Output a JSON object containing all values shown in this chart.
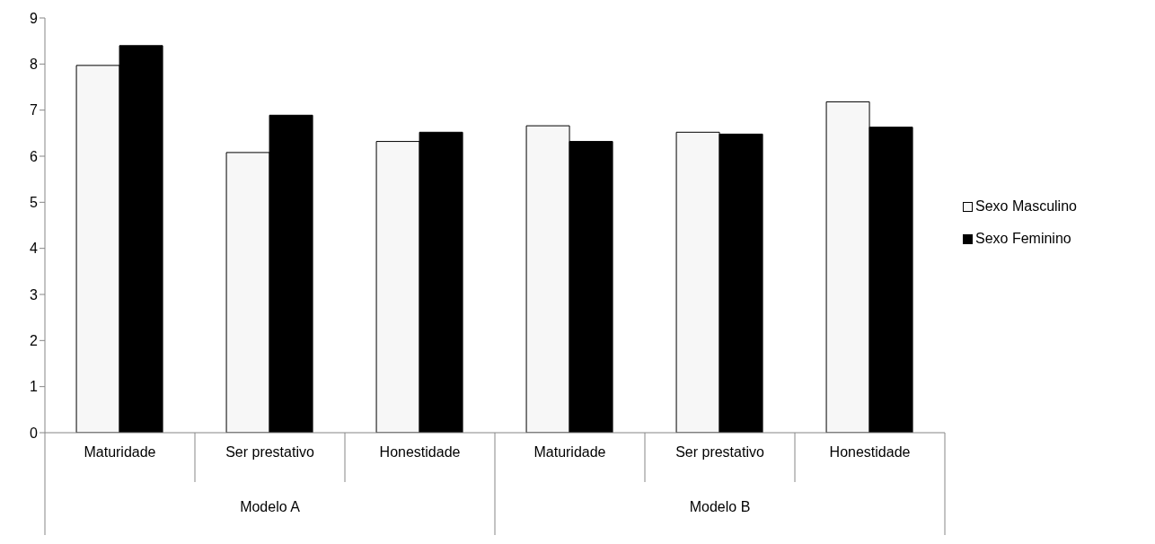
{
  "chart_data": {
    "type": "bar",
    "categories": [
      "Maturidade",
      "Ser prestativo",
      "Honestidade",
      "Maturidade",
      "Ser prestativo",
      "Honestidade"
    ],
    "series": [
      {
        "name": "Sexo Masculino",
        "color": "#f7f7f7",
        "values": [
          7.97,
          6.08,
          6.32,
          6.66,
          6.52,
          7.18
        ]
      },
      {
        "name": "Sexo Feminino",
        "color": "#000000",
        "values": [
          8.4,
          6.89,
          6.52,
          6.32,
          6.48,
          6.63
        ]
      }
    ],
    "ylim": [
      0,
      9
    ],
    "yticks": [
      0,
      1,
      2,
      3,
      4,
      5,
      6,
      7,
      8,
      9
    ],
    "grid": false,
    "legend": "right",
    "annotations": [
      "Modelo A",
      "Modelo B"
    ]
  }
}
